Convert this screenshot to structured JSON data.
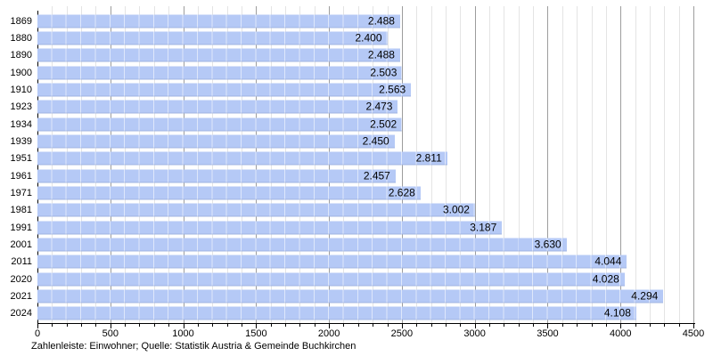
{
  "colors": {
    "bar_fill": "#b5c9f6",
    "grid_minor": "#e4e4e4",
    "grid_major": "#9d9d9d",
    "axis": "#000000",
    "text": "#000000",
    "background": "#ffffff"
  },
  "footer": {
    "text": "Zahlenleiste: Einwohner; Quelle: Statistik Austria & Gemeinde Buchkirchen"
  },
  "chart_data": {
    "type": "bar",
    "orientation": "horizontal",
    "title": "",
    "xlabel": "",
    "ylabel": "",
    "categories": [
      "1869",
      "1880",
      "1890",
      "1900",
      "1910",
      "1923",
      "1934",
      "1939",
      "1951",
      "1961",
      "1971",
      "1981",
      "1991",
      "2001",
      "2011",
      "2020",
      "2021",
      "2024"
    ],
    "values": [
      2488,
      2400,
      2488,
      2503,
      2563,
      2473,
      2502,
      2450,
      2811,
      2457,
      2628,
      3002,
      3187,
      3630,
      4044,
      4028,
      4294,
      4108
    ],
    "value_labels": [
      "2.488",
      "2.400",
      "2.488",
      "2.503",
      "2.563",
      "2.473",
      "2.502",
      "2.450",
      "2.811",
      "2.457",
      "2.628",
      "3.002",
      "3.187",
      "3.630",
      "4.044",
      "4.028",
      "4.294",
      "4.108"
    ],
    "xlim": [
      0,
      4500
    ],
    "x_major_ticks": [
      0,
      500,
      1000,
      1500,
      2000,
      2500,
      3000,
      3500,
      4000,
      4500
    ],
    "x_minor_step": 100,
    "grid": true,
    "legend_position": "none",
    "annotation": "Zahlenleiste: Einwohner; Quelle: Statistik Austria & Gemeinde Buchkirchen"
  }
}
